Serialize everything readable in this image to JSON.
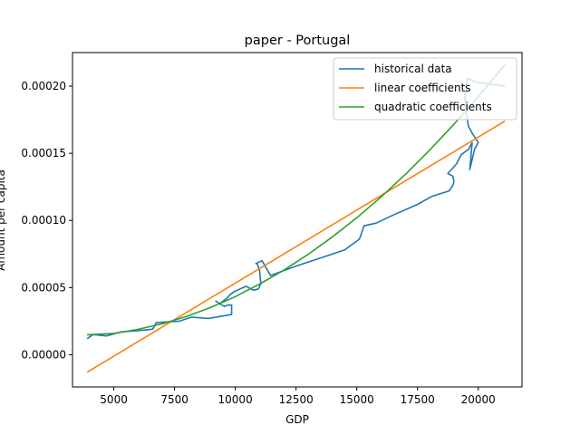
{
  "chart_data": {
    "type": "line",
    "title": "paper - Portugal",
    "xlabel": "GDP",
    "ylabel": "Amount per capita",
    "xlim": [
      3300,
      21800
    ],
    "ylim": [
      -2.4e-05,
      0.000225
    ],
    "xticks": [
      5000,
      7500,
      10000,
      12500,
      15000,
      17500,
      20000
    ],
    "xtick_labels": [
      "5000",
      "7500",
      "10000",
      "12500",
      "15000",
      "17500",
      "20000"
    ],
    "yticks": [
      0.0,
      5e-05,
      0.0001,
      0.00015,
      0.0002
    ],
    "ytick_labels": [
      "0.00000",
      "0.00005",
      "0.00010",
      "0.00015",
      "0.00020"
    ],
    "legend_position": "top-right",
    "grid": false,
    "series": [
      {
        "name": "historical data",
        "color": "#1f77b4",
        "x": [
          3900,
          4150,
          4700,
          5300,
          6000,
          6600,
          6750,
          7700,
          8200,
          8900,
          9850,
          9850,
          9700,
          9550,
          9350,
          9200,
          9350,
          9500,
          9650,
          9800,
          9950,
          10200,
          10450,
          10750,
          10950,
          11050,
          11000,
          10900,
          10850,
          11100,
          11450,
          12500,
          13500,
          14500,
          15100,
          15150,
          15300,
          15800,
          16500,
          17500,
          18100,
          18800,
          18950,
          19000,
          18950,
          18750,
          19100,
          19300,
          19600,
          19750,
          19650,
          19850,
          20000,
          19750,
          19600,
          19500,
          19450,
          19550,
          19900,
          21100
        ],
        "y": [
          1.2e-05,
          1.5e-05,
          1.4e-05,
          1.7e-05,
          1.8e-05,
          1.9e-05,
          2.4e-05,
          2.5e-05,
          2.8e-05,
          2.7e-05,
          3e-05,
          3.7e-05,
          3.7e-05,
          3.6e-05,
          3.8e-05,
          4e-05,
          3.8e-05,
          4e-05,
          4.2e-05,
          4.5e-05,
          4.7e-05,
          4.9e-05,
          5.1e-05,
          4.8e-05,
          4.9e-05,
          5.3e-05,
          6.3e-05,
          6.8e-05,
          6.8e-05,
          7e-05,
          5.9e-05,
          6.6e-05,
          7.2e-05,
          7.8e-05,
          8.6e-05,
          8.8e-05,
          9.6e-05,
          9.8e-05,
          0.000104,
          0.000112,
          0.000118,
          0.000122,
          0.000126,
          0.000129,
          0.000133,
          0.000135,
          0.000142,
          0.000149,
          0.000153,
          0.000158,
          0.000138,
          0.000153,
          0.000158,
          0.000165,
          0.00017,
          0.00018,
          0.000195,
          0.000206,
          0.000203,
          0.0002
        ]
      },
      {
        "name": "linear coefficients",
        "color": "#ff7f0e",
        "x": [
          3900,
          21100
        ],
        "y": [
          -1.3e-05,
          0.000174
        ]
      },
      {
        "name": "quadratic coefficients",
        "color": "#2ca02c",
        "x": [
          3900,
          5000,
          6000,
          7000,
          8000,
          9000,
          10000,
          11000,
          12000,
          13000,
          14000,
          15000,
          16000,
          17000,
          18000,
          19000,
          20000,
          21100
        ],
        "y": [
          1.49e-05,
          1.59e-05,
          1.89e-05,
          2.31e-05,
          2.86e-05,
          3.53e-05,
          4.33e-05,
          5.26e-05,
          6.3e-05,
          7.48e-05,
          8.78e-05,
          0.000102,
          0.0001175,
          0.0001343,
          0.0001523,
          0.0001716,
          0.0001921,
          0.000216
        ]
      }
    ]
  }
}
